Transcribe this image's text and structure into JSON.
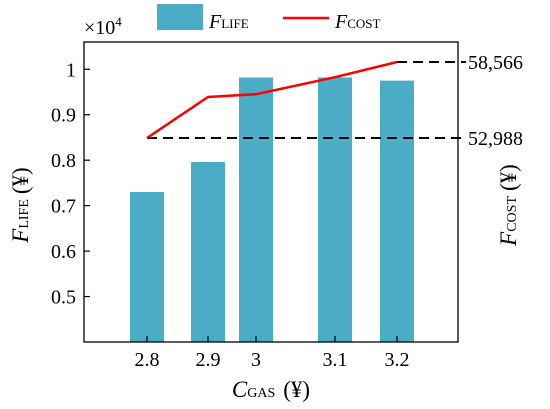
{
  "chart_data": {
    "type": "bar",
    "categories": [
      "2.8",
      "2.9",
      "3",
      "3.1",
      "3.2"
    ],
    "series": [
      {
        "name_main": "F",
        "name_sub": "LIFE",
        "kind": "bar",
        "axis": "left",
        "color": "#4bacc6",
        "values": [
          0.73,
          0.796,
          0.982,
          0.982,
          0.975
        ]
      },
      {
        "name_main": "F",
        "name_sub": "COST",
        "kind": "line",
        "axis": "right",
        "color": "#ff0000",
        "values": [
          52988,
          56000,
          56200,
          57450,
          58566
        ]
      }
    ],
    "left_axis": {
      "ticks": [
        "0.5",
        "0.6",
        "0.7",
        "0.8",
        "0.9",
        "1"
      ],
      "tick_values": [
        0.5,
        0.6,
        0.7,
        0.8,
        0.9,
        1.0
      ],
      "ylim": [
        0.4,
        1.06
      ],
      "multiplier_base": "×10",
      "multiplier_exp": "4",
      "label_main": "F",
      "label_sub": "LIFE",
      "label_unit": "(¥)"
    },
    "right_axis": {
      "ticks": [
        "52,988",
        "58,566"
      ],
      "tick_values": [
        52988,
        58566
      ],
      "label_main": "F",
      "label_sub": "COST",
      "label_unit": "(¥)"
    },
    "x_axis": {
      "label_main": "C",
      "label_sub": "GAS",
      "label_unit": "(¥)"
    },
    "reference_lines": [
      {
        "value": 52988,
        "axis": "right",
        "style": "dashed",
        "color": "#000000"
      },
      {
        "value": 58566,
        "axis": "right",
        "style": "dashed",
        "color": "#000000"
      }
    ],
    "legend_position": "top"
  }
}
